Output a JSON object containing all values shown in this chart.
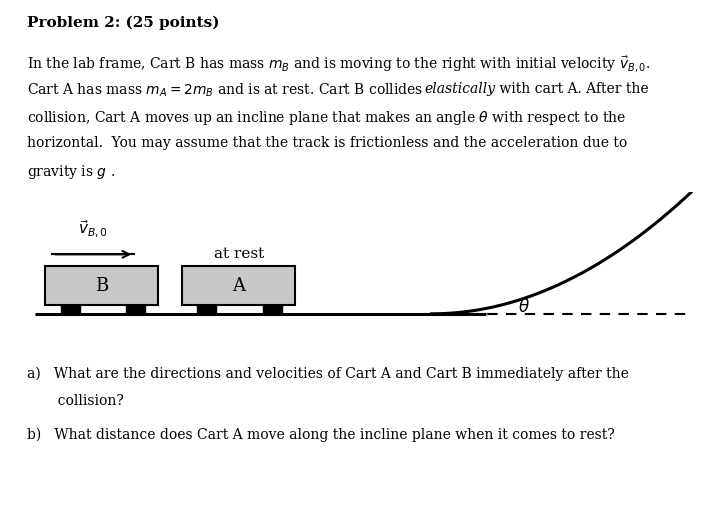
{
  "title": "Problem 2: (25 points)",
  "bg_color": "#ffffff",
  "text_color": "#000000",
  "lines": [
    "In the lab frame, Cart B has mass $m_B$ and is moving to the right with initial velocity $\\vec{v}_{B,0}$.",
    "Cart A has mass $m_A = 2m_B$ and is at rest. Cart B collides \\textit{elastically} with cart A. After the",
    "collision, Cart A moves up an incline plane that makes an angle $\\theta$ with respect to the",
    "horizontal.  You may assume that the track is frictionless and the acceleration due to",
    "gravity is $g$ ."
  ],
  "qa1": "a)   What are the directions and velocities of Cart A and Cart B immediately after the",
  "qa2": "       collision?",
  "qb": "b)   What distance does Cart A move along the incline plane when it comes to rest?",
  "font_size_title": 11,
  "font_size_body": 10,
  "cart_color": "#c8c8c8",
  "wheel_color": "#000000",
  "track_color": "#000000",
  "incline_color": "#000000"
}
